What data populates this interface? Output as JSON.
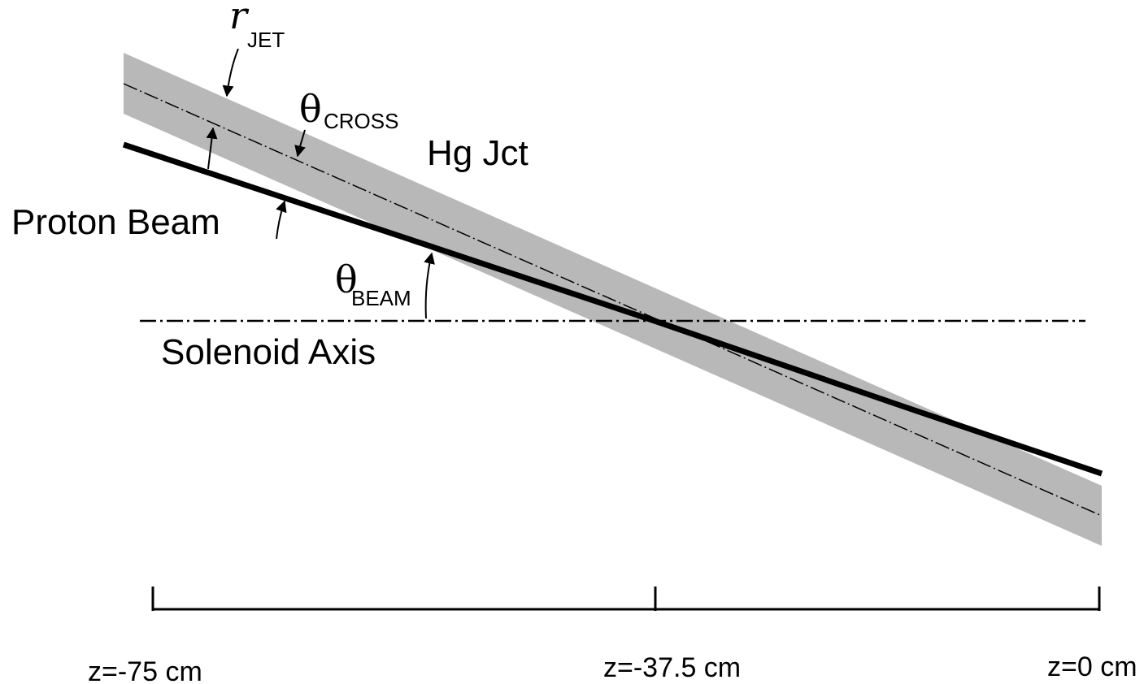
{
  "labels": {
    "r_jet_symbol": "r",
    "r_jet_sub": "JET",
    "theta_cross_symbol": "θ",
    "theta_cross_sub": "CROSS",
    "hg_jet": "Hg Jct",
    "proton_beam": "Proton Beam",
    "theta_beam_symbol": "θ",
    "theta_beam_sub": "BEAM",
    "solenoid_axis": "Solenoid Axis"
  },
  "scale": {
    "ticks": [
      "z=-75 cm",
      "z=-37.5 cm",
      "z=0 cm"
    ]
  }
}
